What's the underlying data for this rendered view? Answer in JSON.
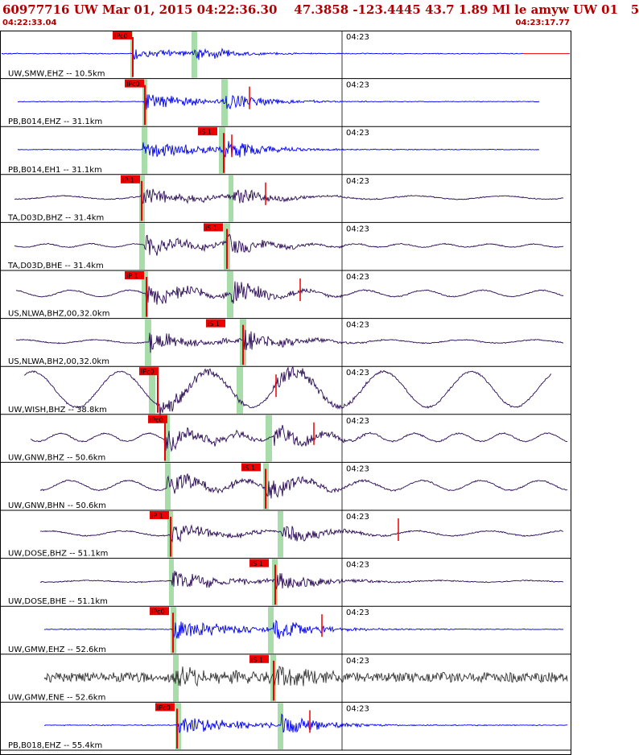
{
  "header": {
    "title": "60977716 UW Mar 01, 2015 04:22:36.30    47.3858 -123.4445 43.7 1.89 Ml le amyw UW 01   5",
    "start_time": "04:22:33.04",
    "end_time": "04:23:17.77"
  },
  "colors": {
    "blue_trace": "#0000ee",
    "dark_trace": "#2a0a55",
    "gray_trace": "#333333",
    "pick": "#ee0000",
    "window": "#a8dca8",
    "grid": "#000000"
  },
  "chart_data": {
    "type": "line",
    "title": "60977716 UW Mar 01, 2015 04:22:36.30    47.3858 -123.4445 43.7 1.89 Ml le amyw UW 01   5",
    "time_range": [
      "04:22:33.04",
      "04:23:17.77"
    ],
    "time_tick_label": "04:23",
    "traces": [
      {
        "label": "UW,SMW,EHZ -- 10.5km",
        "color": "blue",
        "picks": [
          {
            "label": "IPc0"
          }
        ]
      },
      {
        "label": "PB,B014,EHZ -- 31.1km",
        "color": "blue",
        "picks": [
          {
            "label": "IPc0"
          }
        ]
      },
      {
        "label": "PB,B014,EH1 -- 31.1km",
        "color": "blue",
        "picks": [
          {
            "label": "iS 1"
          }
        ]
      },
      {
        "label": "TA,D03D,BHZ -- 31.4km",
        "color": "dark",
        "picks": [
          {
            "label": "iP 1"
          }
        ]
      },
      {
        "label": "TA,D03D,BHE -- 31.4km",
        "color": "dark",
        "picks": [
          {
            "label": "iS 1"
          }
        ]
      },
      {
        "label": "US,NLWA,BHZ,00,32.0km",
        "color": "dark",
        "picks": [
          {
            "label": "iP 1"
          }
        ]
      },
      {
        "label": "US,NLWA,BH2,00,32.0km",
        "color": "dark",
        "picks": [
          {
            "label": "iS 1"
          }
        ]
      },
      {
        "label": "UW,WISH,BHZ -- 38.8km",
        "color": "dark",
        "picks": [
          {
            "label": "IPc0"
          }
        ]
      },
      {
        "label": "UW,GNW,BHZ -- 50.6km",
        "color": "dark",
        "picks": [
          {
            "label": "IPc0"
          }
        ]
      },
      {
        "label": "UW,GNW,BHN -- 50.6km",
        "color": "dark",
        "picks": [
          {
            "label": "iS 1"
          }
        ]
      },
      {
        "label": "UW,DOSE,BHZ -- 51.1km",
        "color": "dark",
        "picks": [
          {
            "label": "iP 1"
          }
        ]
      },
      {
        "label": "UW,DOSE,BHE -- 51.1km",
        "color": "dark",
        "picks": [
          {
            "label": "iS 1"
          }
        ]
      },
      {
        "label": "UW,GMW,EHZ -- 52.6km",
        "color": "blue",
        "picks": [
          {
            "label": "IPc0"
          }
        ]
      },
      {
        "label": "UW,GMW,ENE -- 52.6km",
        "color": "gray",
        "picks": [
          {
            "label": "iS 1"
          }
        ]
      },
      {
        "label": "PB,B018,EHZ -- 55.4km",
        "color": "blue",
        "picks": [
          {
            "label": "IPc0"
          }
        ]
      }
    ]
  }
}
